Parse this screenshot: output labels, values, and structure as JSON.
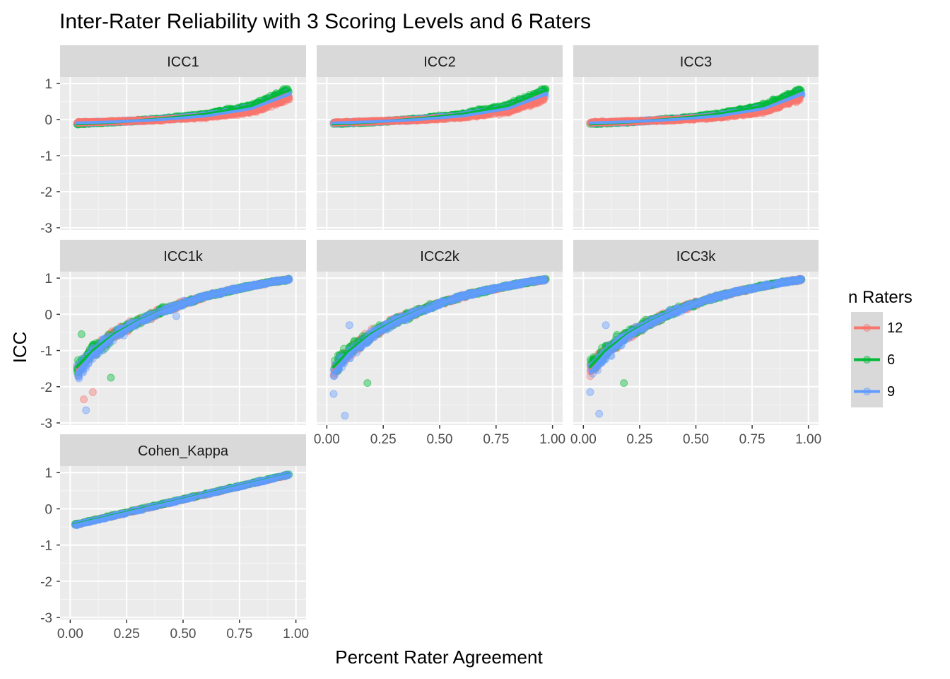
{
  "chart_data": {
    "type": "scatter",
    "title": "Inter-Rater Reliability with 3 Scoring Levels and 6 Raters",
    "xlabel": "Percent Rater Agreement",
    "ylabel": "ICC",
    "xlim": [
      0,
      1
    ],
    "ylim": [
      -3,
      1
    ],
    "x_ticks": [
      "0.00",
      "0.25",
      "0.50",
      "0.75",
      "1.00"
    ],
    "y_ticks": [
      "1",
      "0",
      "-1",
      "-2",
      "-3"
    ],
    "legend": {
      "title": "n Raters",
      "position": "right",
      "entries": [
        {
          "label": "12",
          "color": "#F8766D"
        },
        {
          "label": "6",
          "color": "#00BA38"
        },
        {
          "label": "9",
          "color": "#619CFF"
        }
      ]
    },
    "grid": true,
    "facets": [
      {
        "name": "ICC1",
        "fits": [
          {
            "series": "6",
            "x": [
              0.03,
              0.2,
              0.4,
              0.6,
              0.8,
              0.97
            ],
            "y": [
              -0.12,
              -0.07,
              0.02,
              0.15,
              0.38,
              0.82
            ]
          },
          {
            "series": "9",
            "x": [
              0.03,
              0.2,
              0.4,
              0.6,
              0.8,
              0.97
            ],
            "y": [
              -0.09,
              -0.06,
              0.0,
              0.1,
              0.3,
              0.7
            ]
          },
          {
            "series": "12",
            "x": [
              0.03,
              0.2,
              0.4,
              0.6,
              0.8,
              0.97
            ],
            "y": [
              -0.08,
              -0.05,
              -0.01,
              0.07,
              0.22,
              0.6
            ]
          }
        ]
      },
      {
        "name": "ICC2",
        "fits": [
          {
            "series": "6",
            "x": [
              0.03,
              0.2,
              0.4,
              0.6,
              0.8,
              0.97
            ],
            "y": [
              -0.12,
              -0.07,
              0.02,
              0.15,
              0.38,
              0.82
            ]
          },
          {
            "series": "9",
            "x": [
              0.03,
              0.2,
              0.4,
              0.6,
              0.8,
              0.97
            ],
            "y": [
              -0.09,
              -0.06,
              0.0,
              0.1,
              0.3,
              0.7
            ]
          },
          {
            "series": "12",
            "x": [
              0.03,
              0.2,
              0.4,
              0.6,
              0.8,
              0.97
            ],
            "y": [
              -0.08,
              -0.05,
              -0.01,
              0.07,
              0.22,
              0.6
            ]
          }
        ]
      },
      {
        "name": "ICC3",
        "fits": [
          {
            "series": "6",
            "x": [
              0.03,
              0.2,
              0.4,
              0.6,
              0.8,
              0.97
            ],
            "y": [
              -0.12,
              -0.07,
              0.02,
              0.15,
              0.38,
              0.82
            ]
          },
          {
            "series": "9",
            "x": [
              0.03,
              0.2,
              0.4,
              0.6,
              0.8,
              0.97
            ],
            "y": [
              -0.09,
              -0.06,
              0.0,
              0.1,
              0.3,
              0.7
            ]
          },
          {
            "series": "12",
            "x": [
              0.03,
              0.2,
              0.4,
              0.6,
              0.8,
              0.97
            ],
            "y": [
              -0.08,
              -0.05,
              -0.01,
              0.07,
              0.22,
              0.6
            ]
          }
        ]
      },
      {
        "name": "ICC1k",
        "fits": [
          {
            "series": "12",
            "x": [
              0.03,
              0.1,
              0.2,
              0.3,
              0.4,
              0.5,
              0.6,
              0.7,
              0.8,
              0.9,
              0.97
            ],
            "y": [
              -1.55,
              -1.05,
              -0.55,
              -0.2,
              0.08,
              0.3,
              0.5,
              0.65,
              0.78,
              0.9,
              0.96
            ]
          },
          {
            "series": "6",
            "x": [
              0.03,
              0.1,
              0.2,
              0.3,
              0.4,
              0.5,
              0.6,
              0.7,
              0.8,
              0.9,
              0.97
            ],
            "y": [
              -1.45,
              -1.0,
              -0.53,
              -0.19,
              0.08,
              0.3,
              0.5,
              0.65,
              0.78,
              0.9,
              0.96
            ]
          },
          {
            "series": "9",
            "x": [
              0.03,
              0.1,
              0.2,
              0.3,
              0.4,
              0.5,
              0.6,
              0.7,
              0.8,
              0.9,
              0.97
            ],
            "y": [
              -1.6,
              -1.08,
              -0.57,
              -0.21,
              0.07,
              0.3,
              0.5,
              0.65,
              0.78,
              0.9,
              0.96
            ]
          }
        ]
      },
      {
        "name": "ICC2k",
        "fits": [
          {
            "series": "12",
            "x": [
              0.03,
              0.1,
              0.2,
              0.3,
              0.4,
              0.5,
              0.6,
              0.7,
              0.8,
              0.9,
              0.97
            ],
            "y": [
              -1.55,
              -1.05,
              -0.55,
              -0.2,
              0.08,
              0.3,
              0.5,
              0.65,
              0.78,
              0.9,
              0.96
            ]
          },
          {
            "series": "6",
            "x": [
              0.03,
              0.1,
              0.2,
              0.3,
              0.4,
              0.5,
              0.6,
              0.7,
              0.8,
              0.9,
              0.97
            ],
            "y": [
              -1.45,
              -1.0,
              -0.53,
              -0.19,
              0.08,
              0.3,
              0.5,
              0.65,
              0.78,
              0.9,
              0.96
            ]
          },
          {
            "series": "9",
            "x": [
              0.03,
              0.1,
              0.2,
              0.3,
              0.4,
              0.5,
              0.6,
              0.7,
              0.8,
              0.9,
              0.97
            ],
            "y": [
              -1.6,
              -1.08,
              -0.57,
              -0.21,
              0.07,
              0.3,
              0.5,
              0.65,
              0.78,
              0.9,
              0.96
            ]
          }
        ]
      },
      {
        "name": "ICC3k",
        "fits": [
          {
            "series": "12",
            "x": [
              0.03,
              0.1,
              0.2,
              0.3,
              0.4,
              0.5,
              0.6,
              0.7,
              0.8,
              0.9,
              0.97
            ],
            "y": [
              -1.55,
              -1.05,
              -0.55,
              -0.2,
              0.08,
              0.3,
              0.5,
              0.65,
              0.78,
              0.9,
              0.96
            ]
          },
          {
            "series": "6",
            "x": [
              0.03,
              0.1,
              0.2,
              0.3,
              0.4,
              0.5,
              0.6,
              0.7,
              0.8,
              0.9,
              0.97
            ],
            "y": [
              -1.45,
              -1.0,
              -0.53,
              -0.19,
              0.08,
              0.3,
              0.5,
              0.65,
              0.78,
              0.9,
              0.96
            ]
          },
          {
            "series": "9",
            "x": [
              0.03,
              0.1,
              0.2,
              0.3,
              0.4,
              0.5,
              0.6,
              0.7,
              0.8,
              0.9,
              0.97
            ],
            "y": [
              -1.6,
              -1.08,
              -0.57,
              -0.21,
              0.07,
              0.3,
              0.5,
              0.65,
              0.78,
              0.9,
              0.96
            ]
          }
        ]
      },
      {
        "name": "Cohen_Kappa",
        "fits": [
          {
            "series": "12",
            "x": [
              0.02,
              0.97
            ],
            "y": [
              -0.44,
              0.94
            ]
          },
          {
            "series": "6",
            "x": [
              0.02,
              0.97
            ],
            "y": [
              -0.43,
              0.95
            ]
          },
          {
            "series": "9",
            "x": [
              0.02,
              0.97
            ],
            "y": [
              -0.45,
              0.94
            ]
          }
        ]
      }
    ],
    "outlier_points": [
      {
        "facet": "ICC1k",
        "series": "9",
        "x": 0.07,
        "y": -2.65
      },
      {
        "facet": "ICC1k",
        "series": "12",
        "x": 0.06,
        "y": -2.35
      },
      {
        "facet": "ICC1k",
        "series": "12",
        "x": 0.1,
        "y": -2.15
      },
      {
        "facet": "ICC1k",
        "series": "6",
        "x": 0.18,
        "y": -1.75
      },
      {
        "facet": "ICC1k",
        "series": "6",
        "x": 0.05,
        "y": -0.55
      },
      {
        "facet": "ICC1k",
        "series": "9",
        "x": 0.47,
        "y": -0.05
      },
      {
        "facet": "ICC2k",
        "series": "9",
        "x": 0.08,
        "y": -2.8
      },
      {
        "facet": "ICC2k",
        "series": "9",
        "x": 0.03,
        "y": -2.2
      },
      {
        "facet": "ICC2k",
        "series": "6",
        "x": 0.18,
        "y": -1.9
      },
      {
        "facet": "ICC2k",
        "series": "9",
        "x": 0.1,
        "y": -0.3
      },
      {
        "facet": "ICC3k",
        "series": "9",
        "x": 0.07,
        "y": -2.75
      },
      {
        "facet": "ICC3k",
        "series": "9",
        "x": 0.03,
        "y": -2.15
      },
      {
        "facet": "ICC3k",
        "series": "6",
        "x": 0.18,
        "y": -1.9
      },
      {
        "facet": "ICC3k",
        "series": "9",
        "x": 0.1,
        "y": -0.3
      }
    ]
  }
}
